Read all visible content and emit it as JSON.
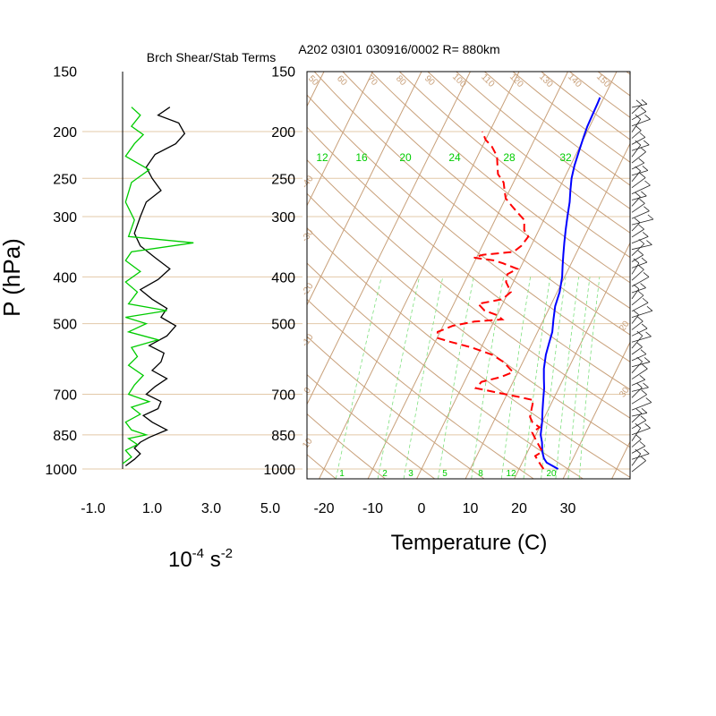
{
  "chart_data": [
    {
      "type": "line",
      "title": "Brch Shear/Stab Terms",
      "xlabel": "10",
      "xlabel_exp": "-4",
      "xlabel_unit": "s",
      "xlabel_unit_exp": "-2",
      "xlim": [
        -1.0,
        5.0
      ],
      "x_tick_labels": [
        "-1.0",
        "1.0",
        "3.0",
        "5.0"
      ],
      "x_ticks": [
        -1.0,
        1.0,
        3.0,
        5.0
      ],
      "ylabel": "P (hPa)",
      "y_ticks": [
        150,
        200,
        250,
        300,
        400,
        500,
        700,
        850,
        1000
      ],
      "y_scale": "log",
      "series": [
        {
          "color": "#000000",
          "points": [
            [
              0.1,
              985
            ],
            [
              0.4,
              955
            ],
            [
              0.6,
              930
            ],
            [
              0.4,
              905
            ],
            [
              0.6,
              880
            ],
            [
              0.9,
              860
            ],
            [
              1.5,
              830
            ],
            [
              1.0,
              800
            ],
            [
              0.7,
              775
            ],
            [
              1.2,
              750
            ],
            [
              1.3,
              725
            ],
            [
              0.8,
              700
            ],
            [
              1.1,
              675
            ],
            [
              1.5,
              650
            ],
            [
              1.0,
              625
            ],
            [
              1.3,
              600
            ],
            [
              1.4,
              575
            ],
            [
              0.9,
              555
            ],
            [
              1.5,
              530
            ],
            [
              1.8,
              505
            ],
            [
              1.3,
              485
            ],
            [
              1.5,
              465
            ],
            [
              1.0,
              445
            ],
            [
              0.6,
              425
            ],
            [
              1.2,
              405
            ],
            [
              1.6,
              385
            ],
            [
              1.1,
              365
            ],
            [
              0.6,
              345
            ],
            [
              0.4,
              325
            ],
            [
              0.6,
              300
            ],
            [
              0.8,
              280
            ],
            [
              1.3,
              265
            ],
            [
              1.0,
              250
            ],
            [
              0.8,
              237
            ],
            [
              1.1,
              223
            ],
            [
              1.8,
              212
            ],
            [
              2.1,
              202
            ],
            [
              1.9,
              192
            ],
            [
              1.2,
              185
            ],
            [
              1.6,
              178
            ]
          ]
        },
        {
          "color": "#00cc00",
          "points": [
            [
              0.0,
              975
            ],
            [
              0.3,
              945
            ],
            [
              0.1,
              915
            ],
            [
              0.5,
              890
            ],
            [
              0.2,
              865
            ],
            [
              0.8,
              850
            ],
            [
              0.3,
              830
            ],
            [
              0.1,
              800
            ],
            [
              0.6,
              770
            ],
            [
              0.3,
              745
            ],
            [
              0.9,
              725
            ],
            [
              0.2,
              700
            ],
            [
              0.4,
              670
            ],
            [
              0.7,
              640
            ],
            [
              0.2,
              610
            ],
            [
              0.5,
              585
            ],
            [
              0.3,
              560
            ],
            [
              1.2,
              540
            ],
            [
              0.2,
              520
            ],
            [
              0.8,
              500
            ],
            [
              0.1,
              485
            ],
            [
              1.5,
              470
            ],
            [
              0.2,
              455
            ],
            [
              0.5,
              430
            ],
            [
              0.1,
              410
            ],
            [
              0.6,
              390
            ],
            [
              0.1,
              370
            ],
            [
              0.3,
              355
            ],
            [
              2.4,
              340
            ],
            [
              0.2,
              330
            ],
            [
              0.4,
              305
            ],
            [
              0.1,
              280
            ],
            [
              0.3,
              255
            ],
            [
              0.9,
              240
            ],
            [
              0.1,
              225
            ],
            [
              0.4,
              212
            ],
            [
              0.7,
              203
            ],
            [
              0.3,
              195
            ],
            [
              0.6,
              185
            ],
            [
              0.3,
              178
            ]
          ]
        }
      ]
    },
    {
      "type": "line",
      "title": "A202 03I01 030916/0002 R= 880km",
      "xlabel": "Temperature (C)",
      "x_ticks": [
        -20,
        -10,
        0,
        10,
        20,
        30
      ],
      "xlim": [
        -23.5,
        42
      ],
      "y_ticks": [
        150,
        200,
        250,
        300,
        400,
        500,
        700,
        850,
        1000
      ],
      "y_scale": "log",
      "ylim": [
        1050,
        150
      ],
      "mixing_ratio_labels_top": [
        12,
        16,
        20,
        24,
        28,
        32
      ],
      "mixing_ratio_labels_bottom": [
        1,
        2,
        3,
        5,
        8,
        12,
        20
      ],
      "dry_adiabat_labels": [
        50,
        60,
        70,
        80,
        90,
        100,
        110,
        120,
        130,
        140,
        150
      ],
      "isotherm_labels_left": [
        -40,
        -30,
        -20,
        -10,
        0,
        10,
        20,
        30
      ],
      "series": [
        {
          "name": "",
          "color": "#0000ff",
          "style": "solid",
          "points": [
            [
              28,
              1000
            ],
            [
              27,
              990
            ],
            [
              25,
              970
            ],
            [
              24,
              950
            ],
            [
              23,
              920
            ],
            [
              22,
              880
            ],
            [
              21,
              850
            ],
            [
              20,
              800
            ],
            [
              19,
              760
            ],
            [
              18,
              720
            ],
            [
              17,
              680
            ],
            [
              16,
              650
            ],
            [
              15,
              620
            ],
            [
              14,
              580
            ],
            [
              13.5,
              550
            ],
            [
              13,
              520
            ],
            [
              12,
              490
            ],
            [
              11,
              460
            ],
            [
              10.5,
              430
            ],
            [
              9.5,
              400
            ],
            [
              8.5,
              380
            ],
            [
              7.5,
              360
            ],
            [
              6.5,
              340
            ],
            [
              5.5,
              320
            ],
            [
              4.5,
              300
            ],
            [
              3.5,
              280
            ],
            [
              2.5,
              265
            ],
            [
              1.5,
              250
            ],
            [
              0.8,
              235
            ],
            [
              0.3,
              220
            ],
            [
              -0.2,
              205
            ],
            [
              -0.5,
              195
            ],
            [
              -0.6,
              185
            ],
            [
              -0.7,
              175
            ],
            [
              -0.8,
              170
            ]
          ]
        },
        {
          "name": "",
          "color": "#ff0000",
          "style": "dashed",
          "points": [
            [
              25,
              1000
            ],
            [
              24,
              980
            ],
            [
              23,
              960
            ],
            [
              22,
              940
            ],
            [
              23,
              920
            ],
            [
              22,
              900
            ],
            [
              21,
              880
            ],
            [
              20,
              860
            ],
            [
              19,
              840
            ],
            [
              20,
              820
            ],
            [
              18,
              800
            ],
            [
              17,
              780
            ],
            [
              16.5,
              750
            ],
            [
              16,
              720
            ],
            [
              13,
              710
            ],
            [
              8,
              695
            ],
            [
              3,
              680
            ],
            [
              3.5,
              660
            ],
            [
              7,
              645
            ],
            [
              9,
              630
            ],
            [
              6,
              600
            ],
            [
              3,
              580
            ],
            [
              -2,
              560
            ],
            [
              -7,
              545
            ],
            [
              -10,
              535
            ],
            [
              -10.5,
              520
            ],
            [
              -8,
              505
            ],
            [
              -4,
              495
            ],
            [
              1.5,
              490
            ],
            [
              0,
              480
            ],
            [
              -3,
              470
            ],
            [
              -5,
              455
            ],
            [
              -0.5,
              445
            ],
            [
              0.5,
              430
            ],
            [
              -1.5,
              410
            ],
            [
              -2,
              395
            ],
            [
              -0.5,
              385
            ],
            [
              -4,
              375
            ],
            [
              -6,
              370
            ],
            [
              -10.5,
              365
            ],
            [
              -9,
              360
            ],
            [
              -3,
              355
            ],
            [
              -2,
              345
            ],
            [
              -1.5,
              330
            ],
            [
              -3,
              320
            ],
            [
              -4,
              305
            ],
            [
              -6,
              295
            ],
            [
              -8,
              285
            ],
            [
              -10,
              275
            ],
            [
              -11,
              265
            ],
            [
              -12,
              255
            ],
            [
              -14,
              245
            ],
            [
              -15,
              235
            ],
            [
              -16,
              225
            ],
            [
              -18,
              215
            ],
            [
              -20,
              208
            ],
            [
              -21.5,
              200
            ]
          ]
        }
      ]
    }
  ]
}
